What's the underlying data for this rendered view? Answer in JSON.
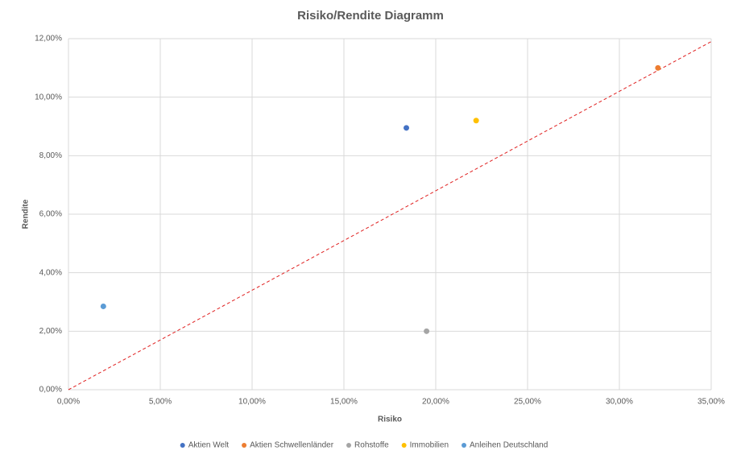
{
  "chart_data": {
    "type": "scatter",
    "title": "Risiko/Rendite Diagramm",
    "x_label": "Risiko",
    "y_label": "Rendite",
    "series": [
      {
        "name": "Aktien Welt",
        "color": "#4472c4",
        "x": [
          18.4
        ],
        "values": [
          8.95
        ]
      },
      {
        "name": "Aktien Schwellenländer",
        "color": "#ed7d31",
        "x": [
          32.1
        ],
        "values": [
          11.0
        ]
      },
      {
        "name": "Rohstoffe",
        "color": "#a5a5a5",
        "x": [
          19.5
        ],
        "values": [
          2.0
        ]
      },
      {
        "name": "Immobilien",
        "color": "#ffc000",
        "x": [
          22.2
        ],
        "values": [
          9.2
        ]
      },
      {
        "name": "Anleihen Deutschland",
        "color": "#5b9bd5",
        "x": [
          1.9
        ],
        "values": [
          2.85
        ]
      }
    ],
    "reference_line": {
      "color": "#e02020",
      "dashed": true,
      "x": [
        0,
        35
      ],
      "values": [
        0,
        11.9
      ]
    },
    "xlim": [
      0,
      35
    ],
    "ylim": [
      0,
      12
    ],
    "xticks": [
      {
        "value": 0,
        "label": "0,00%"
      },
      {
        "value": 5,
        "label": "5,00%"
      },
      {
        "value": 10,
        "label": "10,00%"
      },
      {
        "value": 15,
        "label": "15,00%"
      },
      {
        "value": 20,
        "label": "20,00%"
      },
      {
        "value": 25,
        "label": "25,00%"
      },
      {
        "value": 30,
        "label": "30,00%"
      },
      {
        "value": 35,
        "label": "35,00%"
      }
    ],
    "yticks": [
      {
        "value": 0,
        "label": "0,00%"
      },
      {
        "value": 2,
        "label": "2,00%"
      },
      {
        "value": 4,
        "label": "4,00%"
      },
      {
        "value": 6,
        "label": "6,00%"
      },
      {
        "value": 8,
        "label": "8,00%"
      },
      {
        "value": 10,
        "label": "10,00%"
      },
      {
        "value": 12,
        "label": "12,00%"
      }
    ],
    "grid": true,
    "legend": "bottom"
  }
}
